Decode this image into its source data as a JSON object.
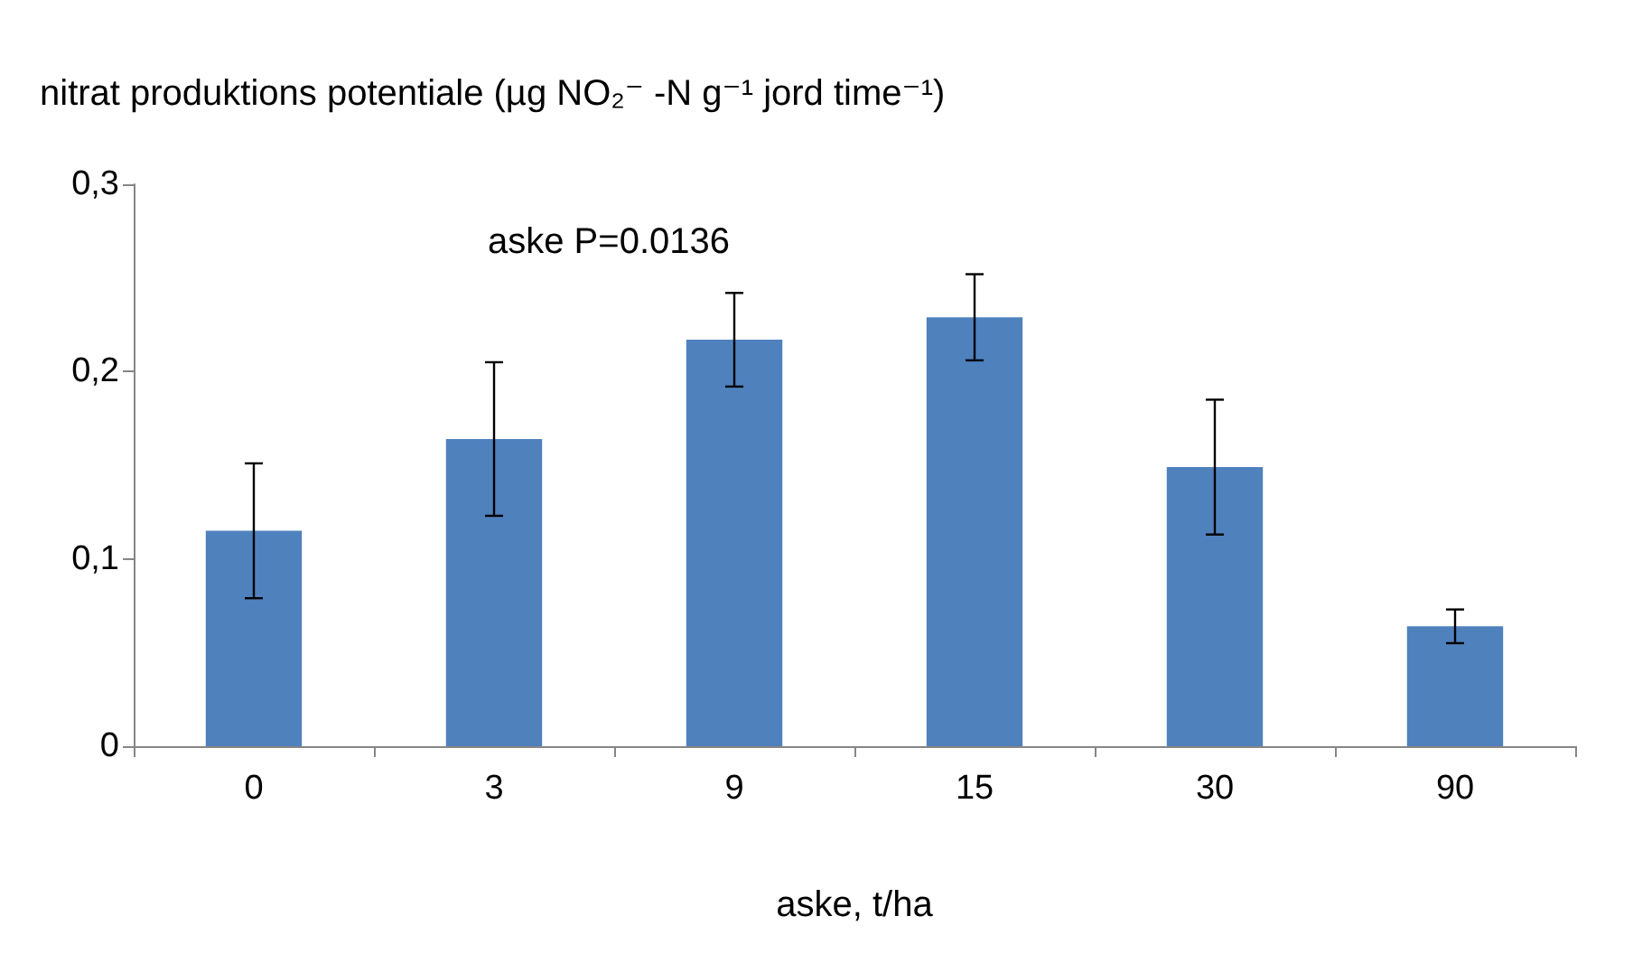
{
  "chart_data": {
    "type": "bar",
    "ylabel": "nitrat produktions potentiale (µg NO₂⁻ -N g⁻¹ jord time⁻¹)",
    "xlabel": "aske, t/ha",
    "annotations": [
      "aske P=0.0136"
    ],
    "categories": [
      "0",
      "3",
      "9",
      "15",
      "30",
      "90"
    ],
    "values": [
      0.115,
      0.164,
      0.217,
      0.229,
      0.149,
      0.064
    ],
    "errors": [
      0.036,
      0.041,
      0.025,
      0.023,
      0.036,
      0.009
    ],
    "color": "#4f81bd",
    "ylim": [
      0,
      0.3
    ],
    "yticks": [
      0,
      {
        "value": 0.1,
        "label": "0,1"
      },
      {
        "value": 0.2,
        "label": "0,2"
      },
      {
        "value": 0.3,
        "label": "0,3"
      }
    ],
    "grid": false
  }
}
